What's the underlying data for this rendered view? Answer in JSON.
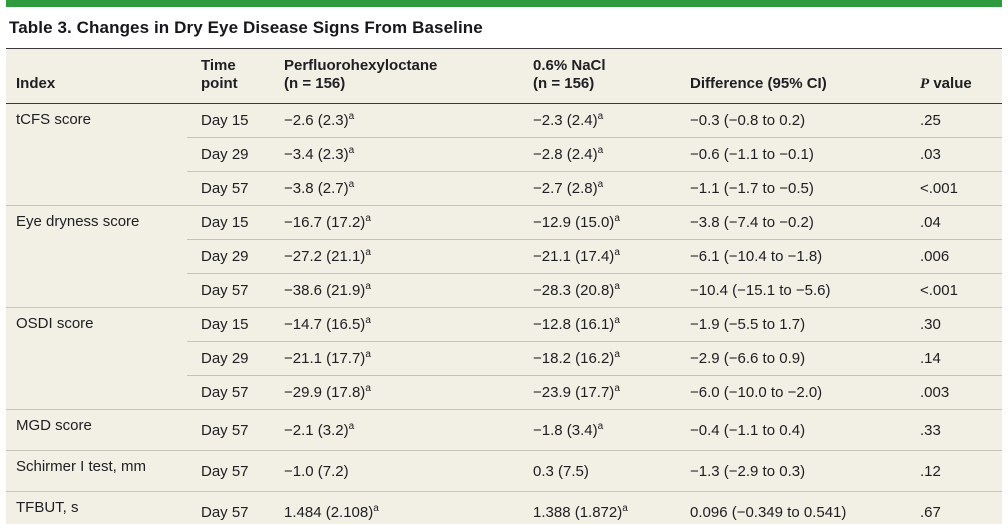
{
  "title": "Table 3. Changes in Dry Eye Disease Signs From Baseline",
  "colors": {
    "accent_green": "#2e9b3f",
    "table_background": "#f2efe5",
    "dark_rule": "#3a3a3c",
    "row_divider": "#c8c4b8",
    "text": "#202024"
  },
  "columns": {
    "index": "Index",
    "time_line1": "Time",
    "time_line2": "point",
    "drug_line1": "Perfluorohexyloctane",
    "drug_line2": "(n = 156)",
    "control_line1": "0.6% NaCl",
    "control_line2": "(n = 156)",
    "difference": "Difference (95% CI)",
    "p_italic": "P",
    "p_rest": " value"
  },
  "rows": [
    {
      "group": "tCFS score",
      "time": "Day 15",
      "drug": "−2.6 (2.3)",
      "drug_sup": "a",
      "ctrl": "−2.3 (2.4)",
      "ctrl_sup": "a",
      "diff": "−0.3 (−0.8 to 0.2)",
      "p": ".25"
    },
    {
      "time": "Day 29",
      "drug": "−3.4 (2.3)",
      "drug_sup": "a",
      "ctrl": "−2.8 (2.4)",
      "ctrl_sup": "a",
      "diff": "−0.6 (−1.1 to −0.1)",
      "p": ".03"
    },
    {
      "time": "Day 57",
      "drug": "−3.8 (2.7)",
      "drug_sup": "a",
      "ctrl": "−2.7 (2.8)",
      "ctrl_sup": "a",
      "diff": "−1.1 (−1.7 to −0.5)",
      "p": "<.001"
    },
    {
      "group": "Eye dryness score",
      "time": "Day 15",
      "drug": "−16.7 (17.2)",
      "drug_sup": "a",
      "ctrl": "−12.9 (15.0)",
      "ctrl_sup": "a",
      "diff": "−3.8 (−7.4 to −0.2)",
      "p": ".04"
    },
    {
      "time": "Day 29",
      "drug": "−27.2 (21.1)",
      "drug_sup": "a",
      "ctrl": "−21.1 (17.4)",
      "ctrl_sup": "a",
      "diff": "−6.1 (−10.4 to −1.8)",
      "p": ".006"
    },
    {
      "time": "Day 57",
      "drug": "−38.6 (21.9)",
      "drug_sup": "a",
      "ctrl": "−28.3 (20.8)",
      "ctrl_sup": "a",
      "diff": "−10.4 (−15.1 to −5.6)",
      "p": "<.001"
    },
    {
      "group": "OSDI score",
      "time": "Day 15",
      "drug": "−14.7 (16.5)",
      "drug_sup": "a",
      "ctrl": "−12.8 (16.1)",
      "ctrl_sup": "a",
      "diff": "−1.9 (−5.5 to 1.7)",
      "p": ".30"
    },
    {
      "time": "Day 29",
      "drug": "−21.1 (17.7)",
      "drug_sup": "a",
      "ctrl": "−18.2 (16.2)",
      "ctrl_sup": "a",
      "diff": "−2.9 (−6.6 to 0.9)",
      "p": ".14"
    },
    {
      "time": "Day 57",
      "drug": "−29.9 (17.8)",
      "drug_sup": "a",
      "ctrl": "−23.9 (17.7)",
      "ctrl_sup": "a",
      "diff": "−6.0 (−10.0 to −2.0)",
      "p": ".003"
    },
    {
      "group": "MGD score",
      "time": "Day 57",
      "drug": "−2.1 (3.2)",
      "drug_sup": "a",
      "ctrl": "−1.8 (3.4)",
      "ctrl_sup": "a",
      "diff": "−0.4 (−1.1 to 0.4)",
      "p": ".33"
    },
    {
      "group": "Schirmer I test, mm",
      "time": "Day 57",
      "drug": "−1.0 (7.2)",
      "drug_sup": "",
      "ctrl": "0.3 (7.5)",
      "ctrl_sup": "",
      "diff": "−1.3 (−2.9 to 0.3)",
      "p": ".12"
    },
    {
      "group": "TFBUT, s",
      "time": "Day 57",
      "drug": "1.484 (2.108)",
      "drug_sup": "a",
      "ctrl": "1.388 (1.872)",
      "ctrl_sup": "a",
      "diff": "0.096 (−0.349 to 0.541)",
      "p": ".67"
    }
  ]
}
